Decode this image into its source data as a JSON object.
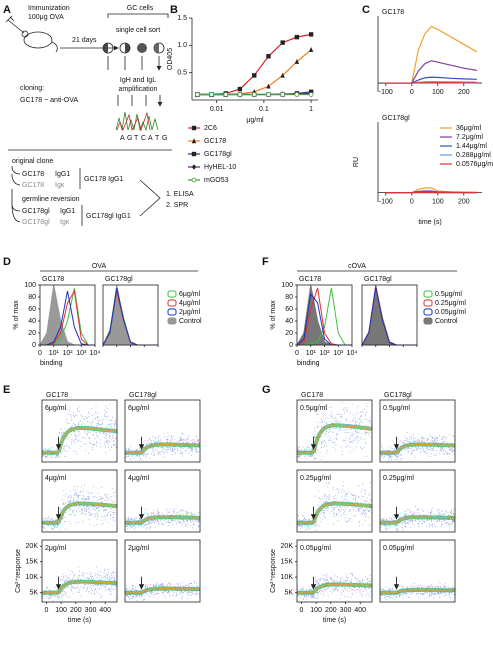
{
  "panel_labels": [
    "A",
    "B",
    "C",
    "D",
    "E",
    "F",
    "G"
  ],
  "schematic": {
    "immunization": [
      "Immunization",
      "100μg OVA"
    ],
    "days": "21 days",
    "gc_cells": "GC cells",
    "sort": "single cell sort",
    "amplification": [
      "IgH and IgL",
      "amplification"
    ],
    "cloning": [
      "cloning:",
      "GC178 ~ anti-OVA"
    ],
    "sequence": [
      "A",
      "G",
      "T",
      "C",
      "A",
      "T",
      "G"
    ],
    "original": {
      "title": "original clone",
      "heavy": [
        "GC178",
        "IgG1"
      ],
      "light": [
        "GC178",
        "Igκ"
      ],
      "antibody": "GC178 IgG1"
    },
    "germline": {
      "title": "germline  reversion",
      "heavy": [
        "GC178gl",
        "IgG1"
      ],
      "light": [
        "GC178gl",
        "Igκ"
      ],
      "antibody": "GC178gl IgG1"
    },
    "assays": [
      "1. ELISA",
      "2. SPR"
    ]
  },
  "chart_data": [
    {
      "type": "line",
      "xlabel": "μg/ml",
      "ylabel": "OD405",
      "log_x": true,
      "legend": "below",
      "x": [
        0.0039,
        0.0078,
        0.0156,
        0.031,
        0.0625,
        0.125,
        0.25,
        0.5,
        1
      ],
      "xlim": [
        0.003,
        1.4
      ],
      "xticks": [
        0.01,
        0.1,
        1
      ],
      "ylim": [
        0,
        1.5
      ],
      "yticks": [
        0.5,
        {
          "value": 1,
          "label": "1.0"
        },
        1.5
      ],
      "series": [
        {
          "name": "2C6",
          "color": "#e02020",
          "marker": "square",
          "values": [
            0.1,
            0.1,
            0.12,
            0.2,
            0.45,
            0.8,
            1.05,
            1.15,
            1.2
          ]
        },
        {
          "name": "GC178",
          "color": "#f08020",
          "marker": "triangle",
          "values": [
            0.1,
            0.1,
            0.1,
            0.11,
            0.15,
            0.25,
            0.45,
            0.7,
            0.92
          ]
        },
        {
          "name": "GC178gl",
          "color": "#2030a0",
          "marker": "square",
          "values": [
            0.1,
            0.1,
            0.1,
            0.1,
            0.1,
            0.1,
            0.1,
            0.12,
            0.15
          ]
        },
        {
          "name": "HyHEL-10",
          "color": "#602080",
          "marker": "diamond",
          "values": [
            0.1,
            0.1,
            0.1,
            0.1,
            0.1,
            0.1,
            0.11,
            0.11,
            0.12
          ]
        },
        {
          "name": "mGO53",
          "color": "#40a040",
          "marker": "circle",
          "values": [
            0.1,
            0.1,
            0.1,
            0.1,
            0.1,
            0.1,
            0.1,
            0.1,
            0.1
          ]
        }
      ]
    },
    {
      "type": "line",
      "title": "GC178",
      "x": [
        -100,
        0,
        25,
        50,
        75,
        100,
        150,
        200,
        250
      ],
      "xlim": [
        -130,
        270
      ],
      "xticks": [
        -100,
        0,
        100,
        200
      ],
      "ylim": [
        -60,
        450
      ],
      "series": [
        {
          "color": "#f0a030",
          "values": [
            0,
            0,
            220,
            330,
            380,
            360,
            310,
            260,
            210
          ]
        },
        {
          "color": "#8040a0",
          "values": [
            0,
            0,
            80,
            130,
            150,
            140,
            120,
            100,
            85
          ]
        },
        {
          "color": "#3050c0",
          "values": [
            0,
            0,
            20,
            35,
            40,
            38,
            32,
            28,
            25
          ]
        },
        {
          "color": "#60a0e0",
          "values": [
            0,
            0,
            5,
            8,
            10,
            9,
            8,
            7,
            6
          ]
        },
        {
          "color": "#e03030",
          "values": [
            0,
            0,
            1,
            2,
            2,
            2,
            2,
            1,
            1
          ]
        }
      ]
    },
    {
      "type": "line",
      "title": "GC178gl",
      "ylabel": "RU",
      "xlabel": "time (s)",
      "legend": "inside-right",
      "x": [
        -100,
        0,
        25,
        50,
        75,
        100,
        150,
        200,
        250
      ],
      "xlim": [
        -130,
        270
      ],
      "xticks": [
        -100,
        0,
        100,
        200
      ],
      "ylim": [
        -60,
        450
      ],
      "series": [
        {
          "name": "36μg/ml",
          "color": "#f0a030",
          "values": [
            0,
            0,
            20,
            30,
            30,
            10,
            5,
            3,
            2
          ]
        },
        {
          "name": "7.2μg/ml",
          "color": "#8040a0",
          "values": [
            0,
            0,
            8,
            10,
            10,
            4,
            2,
            1,
            1
          ]
        },
        {
          "name": "1.44μg/ml",
          "color": "#3050c0",
          "values": [
            0,
            0,
            2,
            3,
            3,
            1,
            1,
            0,
            0
          ]
        },
        {
          "name": "0.288μg/ml",
          "color": "#60a0e0",
          "values": [
            0,
            0,
            1,
            1,
            1,
            0,
            0,
            0,
            0
          ]
        },
        {
          "name": "0.0576μg/ml",
          "color": "#e03030",
          "values": [
            0,
            0,
            0,
            0,
            0,
            0,
            0,
            0,
            0
          ]
        }
      ]
    },
    {
      "type": "density",
      "title": "OVA",
      "xlabel": "binding",
      "ylabel": "% of max",
      "x": [
        0,
        0.5,
        1,
        1.5,
        2,
        2.5,
        3,
        3.5,
        4
      ],
      "xlim": [
        0,
        4
      ],
      "xticks": [
        0,
        {
          "value": 1,
          "label": "10¹"
        },
        {
          "value": 2,
          "label": "10²"
        },
        {
          "value": 3,
          "label": "10³"
        },
        {
          "value": 4,
          "label": "10⁴"
        }
      ],
      "ylim": [
        0,
        100
      ],
      "yticks": [
        0,
        20,
        40,
        60,
        80,
        100
      ],
      "panels": [
        {
          "title": "GC178",
          "series": [
            {
              "name": "6μg/ml",
              "color": "#40c040",
              "values": [
                0,
                0,
                2,
                10,
                40,
                95,
                20,
                0,
                0
              ]
            },
            {
              "name": "4μg/ml",
              "color": "#e03030",
              "values": [
                0,
                0,
                3,
                20,
                70,
                90,
                10,
                0,
                0
              ]
            },
            {
              "name": "2μg/ml",
              "color": "#2030c0",
              "values": [
                0,
                0,
                5,
                30,
                90,
                30,
                2,
                0,
                0
              ]
            },
            {
              "name": "Control",
              "color": "#999999",
              "fill": true,
              "values": [
                0,
                20,
                100,
                40,
                5,
                0,
                0,
                0,
                0
              ]
            }
          ]
        },
        {
          "title": "GC178gl",
          "series": [
            {
              "color": "#40c040",
              "values": [
                0,
                25,
                95,
                45,
                5,
                0,
                0,
                0,
                0
              ]
            },
            {
              "color": "#e03030",
              "values": [
                0,
                22,
                90,
                40,
                5,
                0,
                0,
                0,
                0
              ]
            },
            {
              "color": "#2030c0",
              "values": [
                0,
                20,
                95,
                42,
                4,
                0,
                0,
                0,
                0
              ]
            },
            {
              "color": "#999999",
              "fill": true,
              "values": [
                0,
                20,
                100,
                40,
                5,
                0,
                0,
                0,
                0
              ]
            }
          ]
        }
      ]
    },
    {
      "type": "dotplot",
      "ylabel": "Ca²⁺response",
      "xlabel": "time (s)",
      "columns": [
        "GC178",
        "GC178gl"
      ],
      "rows": [
        "6μg/ml",
        "4μg/ml",
        "2μg/ml"
      ],
      "xlim": [
        -30,
        480
      ],
      "xticks": [
        0,
        100,
        200,
        300,
        400
      ],
      "ylim": [
        2000,
        22000
      ],
      "yticks": [
        {
          "value": 5000,
          "label": "5K"
        },
        {
          "value": 10000,
          "label": "10K"
        },
        {
          "value": 15000,
          "label": "15K"
        },
        {
          "value": 20000,
          "label": "20K"
        }
      ],
      "baseline": 5000,
      "peak": [
        [
          14000,
          8000
        ],
        [
          12000,
          7000
        ],
        [
          9000,
          6500
        ]
      ]
    },
    {
      "type": "density",
      "title": "cOVA",
      "xlabel": "binding",
      "ylabel": "% of max",
      "x": [
        0,
        0.5,
        1,
        1.5,
        2,
        2.5,
        3,
        3.5,
        4
      ],
      "xlim": [
        0,
        4
      ],
      "xticks": [
        0,
        {
          "value": 1,
          "label": "10¹"
        },
        {
          "value": 2,
          "label": "10²"
        },
        {
          "value": 3,
          "label": "10³"
        },
        {
          "value": 4,
          "label": "10⁴"
        }
      ],
      "ylim": [
        0,
        100
      ],
      "yticks": [
        0,
        20,
        40,
        60,
        80,
        100
      ],
      "panels": [
        {
          "title": "GC178",
          "series": [
            {
              "name": "0.5μg/ml",
              "color": "#40c040",
              "values": [
                0,
                0,
                2,
                5,
                30,
                95,
                20,
                0,
                0
              ]
            },
            {
              "name": "0.25μg/ml",
              "color": "#e03030",
              "values": [
                0,
                5,
                60,
                95,
                20,
                2,
                0,
                0,
                0
              ]
            },
            {
              "name": "0.05μg/ml",
              "color": "#2030c0",
              "values": [
                0,
                10,
                85,
                70,
                10,
                0,
                0,
                0,
                0
              ]
            },
            {
              "name": "Control",
              "color": "#777777",
              "fill": true,
              "values": [
                0,
                20,
                100,
                40,
                5,
                0,
                0,
                0,
                0
              ]
            }
          ]
        },
        {
          "title": "GC178gl",
          "series": [
            {
              "color": "#40c040",
              "values": [
                0,
                22,
                95,
                45,
                5,
                0,
                0,
                0,
                0
              ]
            },
            {
              "color": "#e03030",
              "values": [
                0,
                20,
                98,
                42,
                5,
                0,
                0,
                0,
                0
              ]
            },
            {
              "color": "#2030c0",
              "values": [
                0,
                21,
                96,
                40,
                4,
                0,
                0,
                0,
                0
              ]
            },
            {
              "color": "#777777",
              "fill": true,
              "values": [
                0,
                20,
                100,
                40,
                5,
                0,
                0,
                0,
                0
              ]
            }
          ]
        }
      ]
    },
    {
      "type": "dotplot",
      "ylabel": "Ca²⁺response",
      "xlabel": "time (s)",
      "columns": [
        "GC178",
        "GC178gl"
      ],
      "rows": [
        "0.5μg/ml",
        "0.25μg/ml",
        "0.05μg/ml"
      ],
      "xlim": [
        -30,
        480
      ],
      "xticks": [
        0,
        100,
        200,
        300,
        400
      ],
      "ylim": [
        2000,
        22000
      ],
      "yticks": [
        {
          "value": 5000,
          "label": "5K"
        },
        {
          "value": 10000,
          "label": "10K"
        },
        {
          "value": 15000,
          "label": "15K"
        },
        {
          "value": 20000,
          "label": "20K"
        }
      ],
      "baseline": 5000,
      "peak": [
        [
          15000,
          8000
        ],
        [
          12000,
          7000
        ],
        [
          8000,
          6000
        ]
      ]
    }
  ]
}
